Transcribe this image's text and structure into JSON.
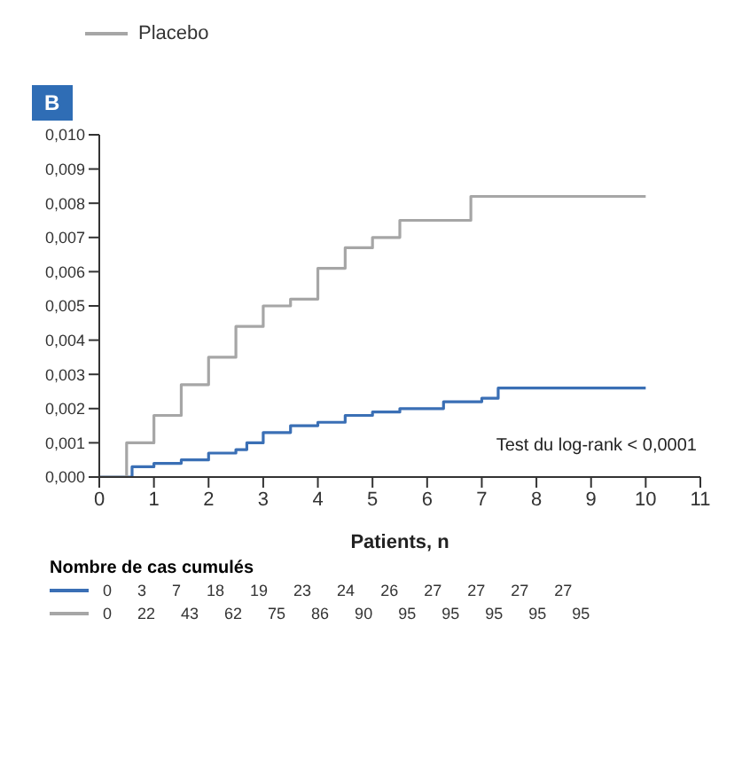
{
  "chart_data": {
    "type": "step",
    "title": "B",
    "xlabel": "Patients, n",
    "series": [
      {
        "color": "#3a6fb5",
        "x": [
          0,
          0.5,
          0.6,
          1,
          1.5,
          2,
          2.5,
          2.7,
          3,
          3.5,
          4,
          4.5,
          5,
          5.5,
          6,
          6.3,
          7,
          7.3,
          10
        ],
        "values": [
          0,
          0,
          0.0003,
          0.0004,
          0.0005,
          0.0007,
          0.0008,
          0.001,
          0.0013,
          0.0015,
          0.0016,
          0.0018,
          0.0019,
          0.002,
          0.002,
          0.0022,
          0.0023,
          0.0026,
          0.0026
        ]
      },
      {
        "name": "Placebo",
        "color": "#a6a6a6",
        "x": [
          0,
          0.5,
          1,
          1.5,
          2,
          2.5,
          3,
          3.5,
          4,
          4.5,
          5,
          5.5,
          6.2,
          6.8,
          10
        ],
        "values": [
          0,
          0.001,
          0.0018,
          0.0027,
          0.0035,
          0.0044,
          0.005,
          0.0052,
          0.0061,
          0.0067,
          0.007,
          0.0075,
          0.0075,
          0.0082,
          0.0082
        ]
      }
    ],
    "xlim": [
      0,
      11
    ],
    "xticks": [
      0,
      1,
      2,
      3,
      4,
      5,
      6,
      7,
      8,
      9,
      10,
      11
    ],
    "ylim": [
      0,
      0.01
    ],
    "yticks": [
      {
        "value": 0,
        "label": "0,000"
      },
      {
        "value": 0.001,
        "label": "0,001"
      },
      {
        "value": 0.002,
        "label": "0,002"
      },
      {
        "value": 0.003,
        "label": "0,003"
      },
      {
        "value": 0.004,
        "label": "0,004"
      },
      {
        "value": 0.005,
        "label": "0,005"
      },
      {
        "value": 0.006,
        "label": "0,006"
      },
      {
        "value": 0.007,
        "label": "0,007"
      },
      {
        "value": 0.008,
        "label": "0,008"
      },
      {
        "value": 0.009,
        "label": "0,009"
      },
      {
        "value": 0.01,
        "label": "0,010"
      }
    ],
    "legend": "top",
    "grid": false,
    "marker": "none",
    "line_style": "solid",
    "annotations": [
      "Test du log-rank < 0,0001",
      "Nombre de cas cumulés",
      "0 3 7 18 19 23 24 26 27 27 27 27",
      "0 22 43 62 75 86 90 95 95 95 95 95"
    ]
  }
}
